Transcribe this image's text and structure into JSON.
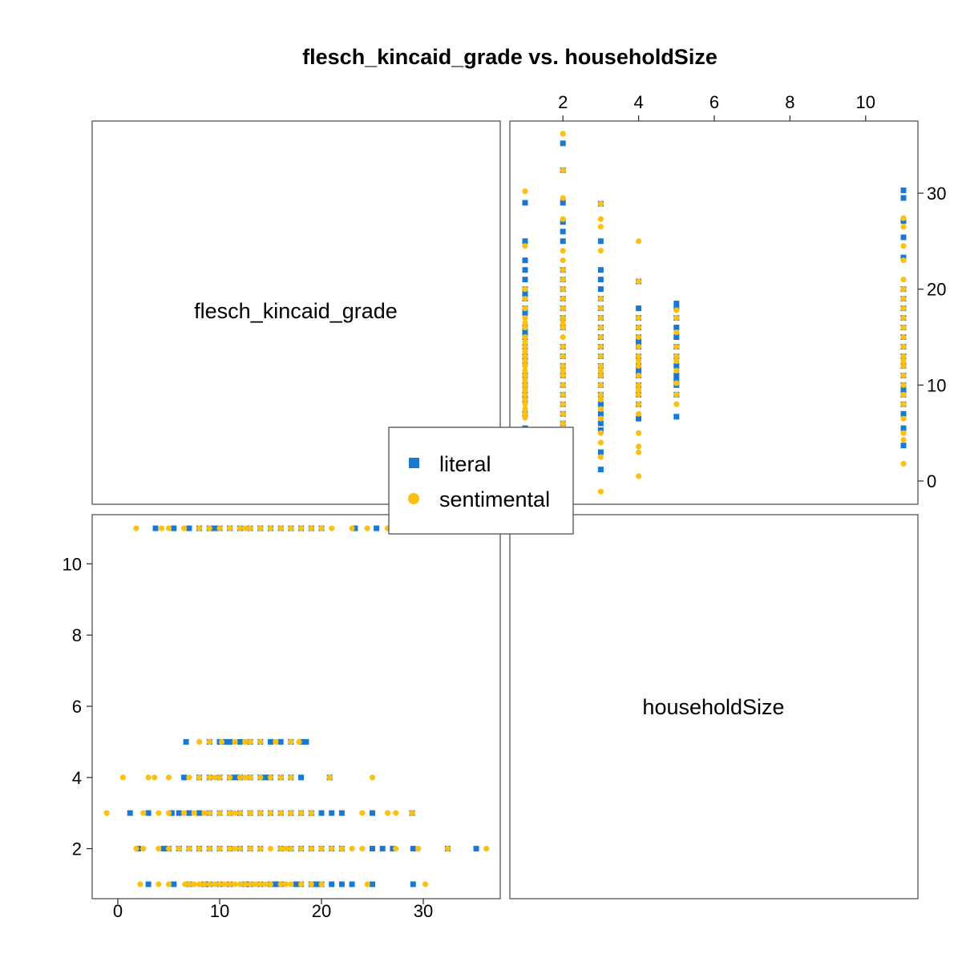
{
  "chart_data": {
    "type": "scatter",
    "title": "flesch_kincaid_grade vs. householdSize",
    "variables": [
      "flesch_kincaid_grade",
      "householdSize"
    ],
    "series": [
      {
        "name": "literal",
        "marker": "square",
        "color": "#1979D2"
      },
      {
        "name": "sentimental",
        "marker": "circle",
        "color": "#FCC010"
      }
    ],
    "axes": {
      "flesch_kincaid_grade": {
        "ticks": [
          0,
          10,
          20,
          30
        ],
        "range": [
          -2,
          37
        ]
      },
      "householdSize": {
        "ticks": [
          2,
          4,
          6,
          8,
          10
        ],
        "range": [
          0.5,
          11.5
        ]
      }
    },
    "points": [
      {
        "series": "literal",
        "h": 1,
        "f": [
          3,
          5.5,
          7,
          9,
          11,
          12.5,
          14,
          15,
          16,
          17.5,
          18,
          19,
          19.5,
          20,
          21,
          22,
          23,
          25,
          29,
          15.5,
          13,
          10,
          8.5
        ]
      },
      {
        "series": "sentimental",
        "h": 1,
        "f": [
          2.2,
          4,
          5,
          6.6,
          7,
          7.5,
          8,
          9,
          10,
          11,
          11.5,
          12,
          13,
          13.5,
          14,
          14.5,
          15,
          16,
          17,
          18,
          19,
          20,
          24.5,
          30.2,
          16.5,
          12.5,
          10.5,
          9.5,
          8.5
        ]
      },
      {
        "series": "literal",
        "h": 2,
        "f": [
          2,
          4.5,
          6,
          8,
          10,
          12,
          14,
          16,
          17,
          19,
          21,
          25,
          26,
          27,
          29,
          32.4,
          35.2,
          22,
          20,
          18,
          13,
          11,
          9,
          7,
          5
        ]
      },
      {
        "series": "sentimental",
        "h": 2,
        "f": [
          1.8,
          2.5,
          4,
          5,
          6,
          7,
          8,
          9,
          10,
          11,
          12,
          13,
          14,
          15,
          16,
          17,
          18,
          19,
          20,
          21,
          22,
          24,
          27.3,
          29.5,
          32.4,
          36.2,
          23,
          16.5,
          11.5
        ]
      },
      {
        "series": "literal",
        "h": 3,
        "f": [
          1.2,
          3,
          5.3,
          6,
          8,
          10,
          11,
          13,
          14,
          15,
          16,
          17,
          18,
          19,
          20,
          21,
          22,
          25,
          28.9,
          12,
          9,
          7
        ]
      },
      {
        "series": "sentimental",
        "h": 3,
        "f": [
          -1.1,
          2.5,
          4,
          5,
          6.5,
          7.5,
          9,
          10,
          11,
          12,
          13,
          14,
          15,
          16,
          17,
          18,
          19,
          24,
          26.5,
          27.3,
          28.9,
          11.5,
          8.5
        ]
      },
      {
        "series": "literal",
        "h": 4,
        "f": [
          6.5,
          8,
          9,
          10,
          11,
          12,
          13,
          14,
          15,
          16,
          17,
          18,
          20.8,
          11.5,
          14.5
        ]
      },
      {
        "series": "sentimental",
        "h": 4,
        "f": [
          0.5,
          3,
          3.6,
          5,
          7,
          8,
          9,
          10,
          11,
          12,
          13,
          14,
          15,
          16,
          17,
          20.8,
          25,
          9.5,
          12.5
        ]
      },
      {
        "series": "literal",
        "h": 5,
        "f": [
          6.7,
          9,
          10,
          11,
          12,
          13,
          14,
          15,
          16,
          17,
          18,
          18.5,
          10.5
        ]
      },
      {
        "series": "sentimental",
        "h": 5,
        "f": [
          8,
          9,
          11.5,
          12.5,
          14,
          15.5,
          17,
          17.8,
          10.2,
          13
        ]
      },
      {
        "series": "literal",
        "h": 11,
        "f": [
          3.7,
          5.5,
          7,
          8,
          9,
          10,
          12,
          13,
          14,
          15,
          16,
          17,
          18,
          19,
          20,
          23.3,
          25.4,
          27.1,
          29.5,
          30.3,
          11,
          9.5
        ]
      },
      {
        "series": "sentimental",
        "h": 11,
        "f": [
          1.8,
          4.3,
          5,
          6.5,
          8,
          10,
          11,
          12,
          13,
          14,
          15,
          16,
          17,
          18,
          19,
          20,
          21,
          23,
          24.5,
          26.5,
          27.4,
          12.5,
          9
        ]
      }
    ]
  },
  "legend": {
    "items": [
      "literal",
      "sentimental"
    ],
    "placement": "center"
  }
}
